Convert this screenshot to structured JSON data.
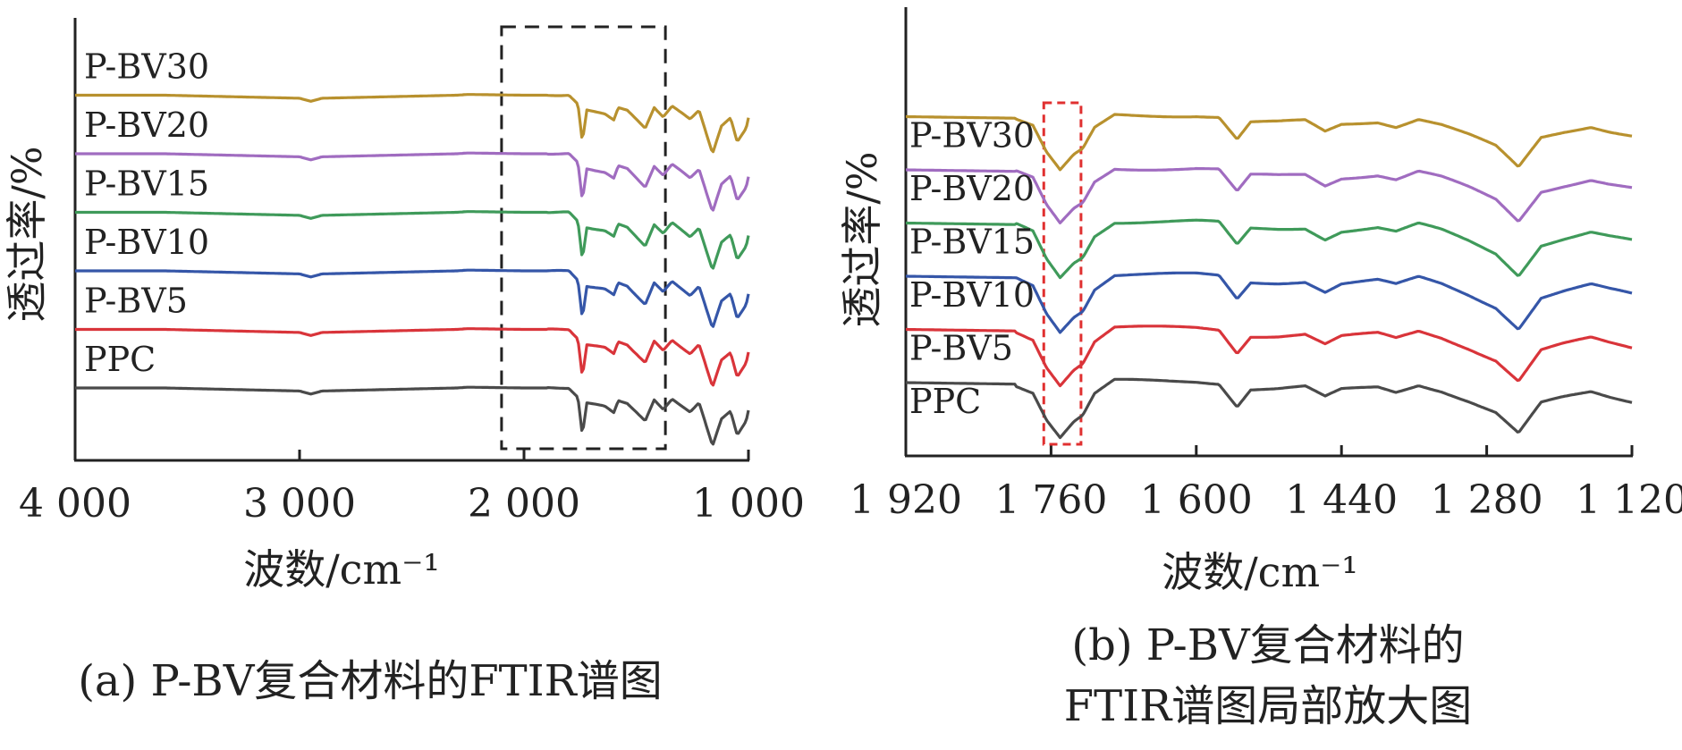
{
  "chart_data": [
    {
      "type": "line",
      "caption": "(a) P-BV复合材料的FTIR谱图",
      "xlabel": "波数/cm⁻¹",
      "ylabel": "透过率/%",
      "x_reversed": true,
      "xlim": [
        4000,
        1000
      ],
      "xticks": [
        "4 000",
        "3 000",
        "2 000",
        "1 000"
      ],
      "highlight_box": {
        "x_range": [
          2100,
          1370
        ],
        "style": "dashed",
        "color": "#222222"
      },
      "series": [
        {
          "name": "PPC",
          "color": "#4a4a4a",
          "offset": 0
        },
        {
          "name": "P-BV5",
          "color": "#d9343a",
          "offset": 1
        },
        {
          "name": "P-BV10",
          "color": "#3556a8",
          "offset": 2
        },
        {
          "name": "P-BV15",
          "color": "#3f9a5a",
          "offset": 3
        },
        {
          "name": "P-BV20",
          "color": "#a06cc0",
          "offset": 4
        },
        {
          "name": "P-BV30",
          "color": "#b8912e",
          "offset": 5
        }
      ],
      "profile": [
        [
          4000,
          0
        ],
        [
          3600,
          0
        ],
        [
          3450,
          -0.05
        ],
        [
          3000,
          -0.2
        ],
        [
          2950,
          -0.4
        ],
        [
          2900,
          -0.2
        ],
        [
          2300,
          0
        ],
        [
          2250,
          0.05
        ],
        [
          2000,
          0
        ],
        [
          1800,
          0
        ],
        [
          1760,
          -0.6
        ],
        [
          1740,
          -3.1
        ],
        [
          1720,
          -1.0
        ],
        [
          1640,
          -1.2
        ],
        [
          1600,
          -1.6
        ],
        [
          1580,
          -0.8
        ],
        [
          1540,
          -1.0
        ],
        [
          1460,
          -2.2
        ],
        [
          1420,
          -0.8
        ],
        [
          1380,
          -1.4
        ],
        [
          1340,
          -0.7
        ],
        [
          1260,
          -1.6
        ],
        [
          1220,
          -1.0
        ],
        [
          1160,
          -3.8
        ],
        [
          1120,
          -2.0
        ],
        [
          1080,
          -1.5
        ],
        [
          1050,
          -3.1
        ],
        [
          1010,
          -2.2
        ],
        [
          1000,
          -1.5
        ]
      ]
    },
    {
      "type": "line",
      "caption": "(b) P-BV复合材料的\nFTIR谱图局部放大图",
      "caption_lines": [
        "(b) P-BV复合材料的",
        "FTIR谱图局部放大图"
      ],
      "xlabel": "波数/cm⁻¹",
      "ylabel": "透过率/%",
      "x_reversed": true,
      "xlim": [
        1920,
        1120
      ],
      "xticks": [
        "1 920",
        "1 760",
        "1 600",
        "1 440",
        "1 280",
        "1 120"
      ],
      "highlight_box": {
        "x_range": [
          1768,
          1727
        ],
        "style": "dashed",
        "color": "#e03030"
      },
      "series": [
        {
          "name": "PPC",
          "color": "#4a4a4a",
          "offset": 0
        },
        {
          "name": "P-BV5",
          "color": "#d9343a",
          "offset": 1
        },
        {
          "name": "P-BV10",
          "color": "#3556a8",
          "offset": 2
        },
        {
          "name": "P-BV15",
          "color": "#3f9a5a",
          "offset": 3
        },
        {
          "name": "P-BV20",
          "color": "#a06cc0",
          "offset": 4
        },
        {
          "name": "P-BV30",
          "color": "#b8912e",
          "offset": 5
        }
      ],
      "profile": [
        [
          1920,
          0
        ],
        [
          1800,
          -0.05
        ],
        [
          1780,
          -0.3
        ],
        [
          1765,
          -1.2
        ],
        [
          1750,
          -1.8
        ],
        [
          1735,
          -1.3
        ],
        [
          1725,
          -1.1
        ],
        [
          1712,
          -0.4
        ],
        [
          1690,
          0.05
        ],
        [
          1640,
          0.05
        ],
        [
          1600,
          0.05
        ],
        [
          1575,
          0
        ],
        [
          1555,
          -0.75
        ],
        [
          1540,
          -0.2
        ],
        [
          1510,
          -0.2
        ],
        [
          1480,
          -0.15
        ],
        [
          1458,
          -0.5
        ],
        [
          1440,
          -0.25
        ],
        [
          1400,
          -0.15
        ],
        [
          1380,
          -0.3
        ],
        [
          1355,
          -0.05
        ],
        [
          1330,
          -0.25
        ],
        [
          1300,
          -0.6
        ],
        [
          1270,
          -1.0
        ],
        [
          1245,
          -1.7
        ],
        [
          1220,
          -0.7
        ],
        [
          1195,
          -0.5
        ],
        [
          1165,
          -0.3
        ],
        [
          1145,
          -0.45
        ],
        [
          1120,
          -0.6
        ]
      ]
    }
  ]
}
